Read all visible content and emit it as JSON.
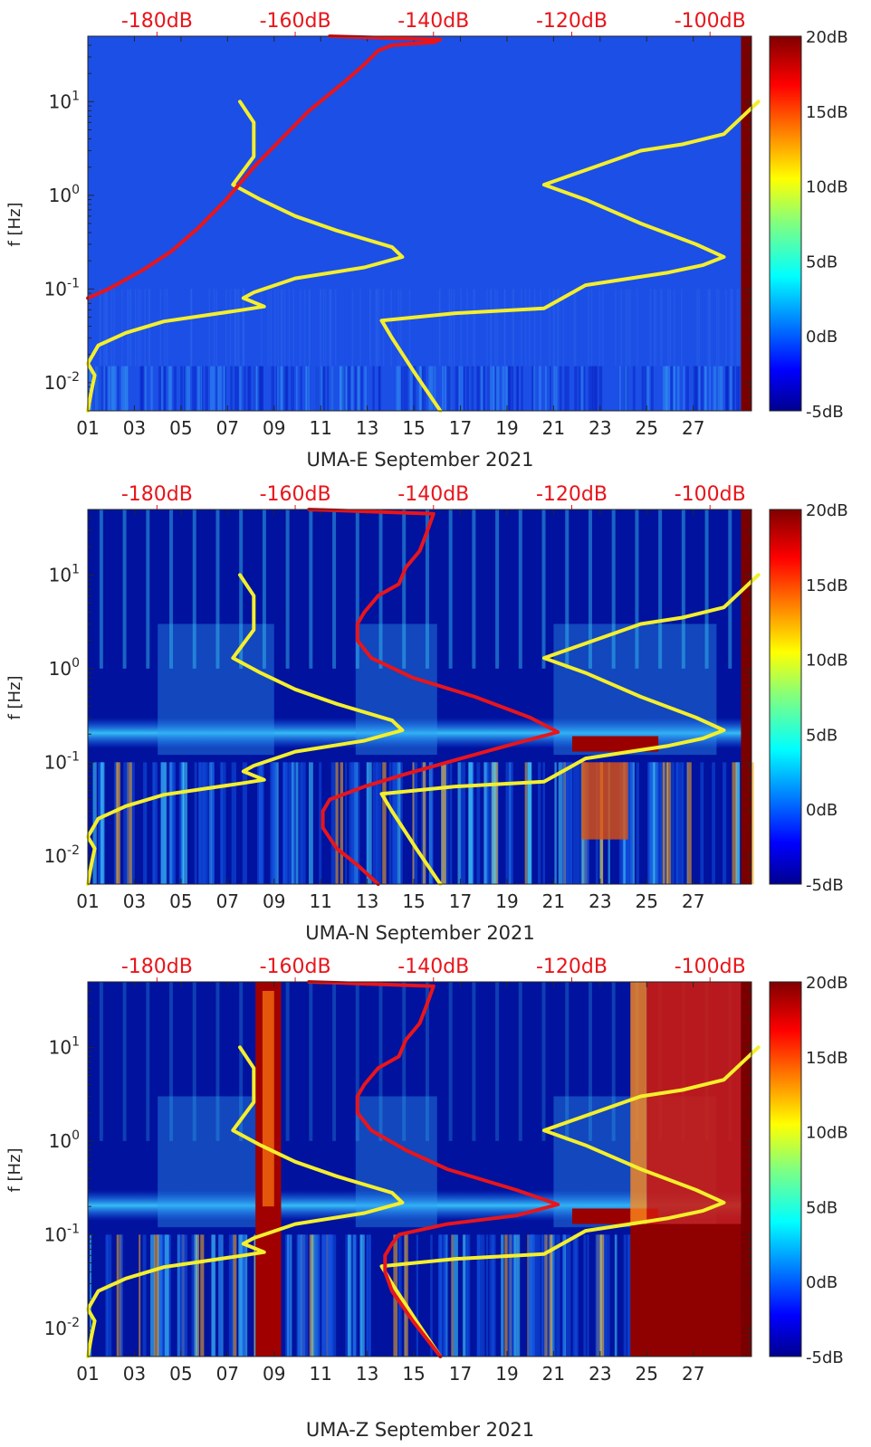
{
  "colors": {
    "spectrum_line": "#e8151b",
    "model_curve": "#f4ef2c",
    "top_axis_text": "#e8151b",
    "axis_text": "#262626"
  },
  "chart_data": [
    {
      "type": "heatmap",
      "xlabel": "UMA-E September 2021",
      "ylabel": "f [Hz]",
      "x_tick_labels": [
        "01",
        "03",
        "05",
        "07",
        "09",
        "11",
        "13",
        "15",
        "17",
        "19",
        "21",
        "23",
        "25",
        "27"
      ],
      "x_range_days": [
        1,
        29.5
      ],
      "y_tick_labels": [
        "10-2",
        "10-1",
        "100",
        "101"
      ],
      "y_range_hz": [
        0.005,
        50
      ],
      "y_scale": "log",
      "top_axis_labels": [
        "-180dB",
        "-160dB",
        "-140dB",
        "-120dB",
        "-100dB"
      ],
      "top_axis_range_db": [
        -190,
        -94
      ],
      "colorbar": {
        "label_values": [
          "20dB",
          "15dB",
          "10dB",
          "5dB",
          "0dB",
          "-5dB"
        ],
        "range_db": [
          -5,
          20
        ],
        "colormap": "jet"
      },
      "background": "mostly uniform blue (~-2 dB) with vertical low-frequency striping below 0.015 Hz",
      "series": [
        {
          "color": "yellow",
          "curve": [
            [
              -190,
              0.005
            ],
            [
              -189.5,
              0.008
            ],
            [
              -189,
              0.012
            ],
            [
              -190,
              0.016
            ],
            [
              -188.5,
              0.025
            ],
            [
              -184.5,
              0.034
            ],
            [
              -179,
              0.045
            ],
            [
              -167.5,
              0.06
            ],
            [
              -164.5,
              0.065
            ],
            [
              -167.5,
              0.08
            ],
            [
              -166,
              0.092
            ],
            [
              -160,
              0.13
            ],
            [
              -150,
              0.17
            ],
            [
              -144.5,
              0.22
            ],
            [
              -146,
              0.28
            ],
            [
              -154,
              0.42
            ],
            [
              -160,
              0.6
            ],
            [
              -165,
              0.9
            ],
            [
              -169,
              1.3
            ],
            [
              -166,
              2.6
            ],
            [
              -166,
              6
            ],
            [
              -168,
              10
            ]
          ]
        },
        {
          "color": "yellow",
          "curve": [
            [
              -139,
              0.005
            ],
            [
              -142.5,
              0.012
            ],
            [
              -146,
              0.03
            ],
            [
              -147.5,
              0.046
            ],
            [
              -137,
              0.055
            ],
            [
              -124,
              0.062
            ],
            [
              -118,
              0.11
            ],
            [
              -106,
              0.15
            ],
            [
              -101,
              0.18
            ],
            [
              -98,
              0.22
            ],
            [
              -102,
              0.3
            ],
            [
              -110,
              0.5
            ],
            [
              -118,
              0.9
            ],
            [
              -124,
              1.3
            ],
            [
              -110,
              3
            ],
            [
              -104,
              3.5
            ],
            [
              -98,
              4.5
            ],
            [
              -93,
              10
            ]
          ]
        },
        {
          "color": "red",
          "curve": [
            [
              -190,
              0.08
            ],
            [
              -187,
              0.1
            ],
            [
              -182,
              0.16
            ],
            [
              -178,
              0.25
            ],
            [
              -174,
              0.45
            ],
            [
              -170,
              0.9
            ],
            [
              -166,
              2
            ],
            [
              -162,
              4
            ],
            [
              -158,
              8
            ],
            [
              -153,
              16
            ],
            [
              -150,
              25
            ],
            [
              -148,
              35
            ],
            [
              -146,
              40
            ],
            [
              -140,
              43
            ],
            [
              -139,
              46
            ],
            [
              -155,
              50
            ]
          ]
        }
      ]
    },
    {
      "type": "heatmap",
      "xlabel": "UMA-N September 2021",
      "ylabel": "f [Hz]",
      "x_tick_labels": [
        "01",
        "03",
        "05",
        "07",
        "09",
        "11",
        "13",
        "15",
        "17",
        "19",
        "21",
        "23",
        "25",
        "27"
      ],
      "x_range_days": [
        1,
        29.5
      ],
      "y_tick_labels": [
        "10-2",
        "10-1",
        "100",
        "101"
      ],
      "y_range_hz": [
        0.005,
        50
      ],
      "y_scale": "log",
      "top_axis_labels": [
        "-180dB",
        "-160dB",
        "-140dB",
        "-120dB",
        "-100dB"
      ],
      "top_axis_range_db": [
        -190,
        -94
      ],
      "colorbar": {
        "label_values": [
          "20dB",
          "15dB",
          "10dB",
          "5dB",
          "0dB",
          "-5dB"
        ],
        "range_db": [
          -5,
          20
        ],
        "colormap": "jet"
      },
      "background": "dark blue with daily vertical cyan/yellow bands; strong microseism band near 0.15-0.25 Hz, red patches Sep 22-24",
      "series": [
        {
          "color": "yellow",
          "curve": [
            [
              -190,
              0.005
            ],
            [
              -189.5,
              0.008
            ],
            [
              -189,
              0.012
            ],
            [
              -190,
              0.016
            ],
            [
              -188.5,
              0.025
            ],
            [
              -184.5,
              0.034
            ],
            [
              -179,
              0.045
            ],
            [
              -167.5,
              0.06
            ],
            [
              -164.5,
              0.065
            ],
            [
              -167.5,
              0.08
            ],
            [
              -166,
              0.092
            ],
            [
              -160,
              0.13
            ],
            [
              -150,
              0.17
            ],
            [
              -144.5,
              0.22
            ],
            [
              -146,
              0.28
            ],
            [
              -154,
              0.42
            ],
            [
              -160,
              0.6
            ],
            [
              -165,
              0.9
            ],
            [
              -169,
              1.3
            ],
            [
              -166,
              2.6
            ],
            [
              -166,
              6
            ],
            [
              -168,
              10
            ]
          ]
        },
        {
          "color": "yellow",
          "curve": [
            [
              -139,
              0.005
            ],
            [
              -142.5,
              0.012
            ],
            [
              -146,
              0.03
            ],
            [
              -147.5,
              0.046
            ],
            [
              -137,
              0.055
            ],
            [
              -124,
              0.062
            ],
            [
              -118,
              0.11
            ],
            [
              -106,
              0.15
            ],
            [
              -101,
              0.18
            ],
            [
              -98,
              0.22
            ],
            [
              -102,
              0.3
            ],
            [
              -110,
              0.5
            ],
            [
              -118,
              0.9
            ],
            [
              -124,
              1.3
            ],
            [
              -110,
              3
            ],
            [
              -104,
              3.5
            ],
            [
              -98,
              4.5
            ],
            [
              -93,
              10
            ]
          ]
        },
        {
          "color": "red",
          "curve": [
            [
              -148,
              0.005
            ],
            [
              -151,
              0.008
            ],
            [
              -154,
              0.012
            ],
            [
              -156,
              0.02
            ],
            [
              -156,
              0.03
            ],
            [
              -155,
              0.04
            ],
            [
              -150,
              0.055
            ],
            [
              -144,
              0.075
            ],
            [
              -136,
              0.11
            ],
            [
              -128,
              0.16
            ],
            [
              -122,
              0.21
            ],
            [
              -126,
              0.3
            ],
            [
              -134,
              0.5
            ],
            [
              -143,
              0.8
            ],
            [
              -149,
              1.3
            ],
            [
              -151,
              2
            ],
            [
              -151,
              3
            ],
            [
              -150,
              4
            ],
            [
              -148,
              6
            ],
            [
              -145,
              8
            ],
            [
              -144,
              12
            ],
            [
              -142,
              18
            ],
            [
              -141,
              28
            ],
            [
              -140,
              45
            ],
            [
              -158,
              50
            ]
          ]
        }
      ]
    },
    {
      "type": "heatmap",
      "xlabel": "UMA-Z September 2021",
      "ylabel": "f [Hz]",
      "x_tick_labels": [
        "01",
        "03",
        "05",
        "07",
        "09",
        "11",
        "13",
        "15",
        "17",
        "19",
        "21",
        "23",
        "25",
        "27"
      ],
      "x_range_days": [
        1,
        29.5
      ],
      "y_tick_labels": [
        "10-2",
        "10-1",
        "100",
        "101"
      ],
      "y_range_hz": [
        0.005,
        50
      ],
      "y_scale": "log",
      "top_axis_labels": [
        "-180dB",
        "-160dB",
        "-140dB",
        "-120dB",
        "-100dB"
      ],
      "top_axis_range_db": [
        -190,
        -94
      ],
      "colorbar": {
        "label_values": [
          "20dB",
          "15dB",
          "10dB",
          "5dB",
          "0dB",
          "-5dB"
        ],
        "range_db": [
          -5,
          20
        ],
        "colormap": "jet"
      },
      "background": "dark blue; red vertical band Sep 8-9; broadband red from Sep 24 onward; microseism band near 0.15-0.25 Hz",
      "series": [
        {
          "color": "yellow",
          "curve": [
            [
              -190,
              0.005
            ],
            [
              -189.5,
              0.008
            ],
            [
              -189,
              0.012
            ],
            [
              -190,
              0.016
            ],
            [
              -188.5,
              0.025
            ],
            [
              -184.5,
              0.034
            ],
            [
              -179,
              0.045
            ],
            [
              -167.5,
              0.06
            ],
            [
              -164.5,
              0.065
            ],
            [
              -167.5,
              0.08
            ],
            [
              -166,
              0.092
            ],
            [
              -160,
              0.13
            ],
            [
              -150,
              0.17
            ],
            [
              -144.5,
              0.22
            ],
            [
              -146,
              0.28
            ],
            [
              -154,
              0.42
            ],
            [
              -160,
              0.6
            ],
            [
              -165,
              0.9
            ],
            [
              -169,
              1.3
            ],
            [
              -166,
              2.6
            ],
            [
              -166,
              6
            ],
            [
              -168,
              10
            ]
          ]
        },
        {
          "color": "yellow",
          "curve": [
            [
              -139,
              0.005
            ],
            [
              -142.5,
              0.012
            ],
            [
              -146,
              0.03
            ],
            [
              -147.5,
              0.046
            ],
            [
              -137,
              0.055
            ],
            [
              -124,
              0.062
            ],
            [
              -118,
              0.11
            ],
            [
              -106,
              0.15
            ],
            [
              -101,
              0.18
            ],
            [
              -98,
              0.22
            ],
            [
              -102,
              0.3
            ],
            [
              -110,
              0.5
            ],
            [
              -118,
              0.9
            ],
            [
              -124,
              1.3
            ],
            [
              -110,
              3
            ],
            [
              -104,
              3.5
            ],
            [
              -98,
              4.5
            ],
            [
              -93,
              10
            ]
          ]
        },
        {
          "color": "red",
          "curve": [
            [
              -139,
              0.005
            ],
            [
              -143,
              0.012
            ],
            [
              -146,
              0.025
            ],
            [
              -147,
              0.04
            ],
            [
              -147,
              0.06
            ],
            [
              -146,
              0.08
            ],
            [
              -145,
              0.1
            ],
            [
              -138,
              0.13
            ],
            [
              -128,
              0.16
            ],
            [
              -122,
              0.21
            ],
            [
              -128,
              0.3
            ],
            [
              -138,
              0.5
            ],
            [
              -144,
              0.8
            ],
            [
              -149,
              1.3
            ],
            [
              -151,
              2
            ],
            [
              -151,
              3
            ],
            [
              -150,
              4
            ],
            [
              -148,
              6
            ],
            [
              -145,
              8
            ],
            [
              -144,
              12
            ],
            [
              -142,
              18
            ],
            [
              -141,
              28
            ],
            [
              -140,
              45
            ],
            [
              -158,
              50
            ]
          ]
        }
      ]
    }
  ]
}
